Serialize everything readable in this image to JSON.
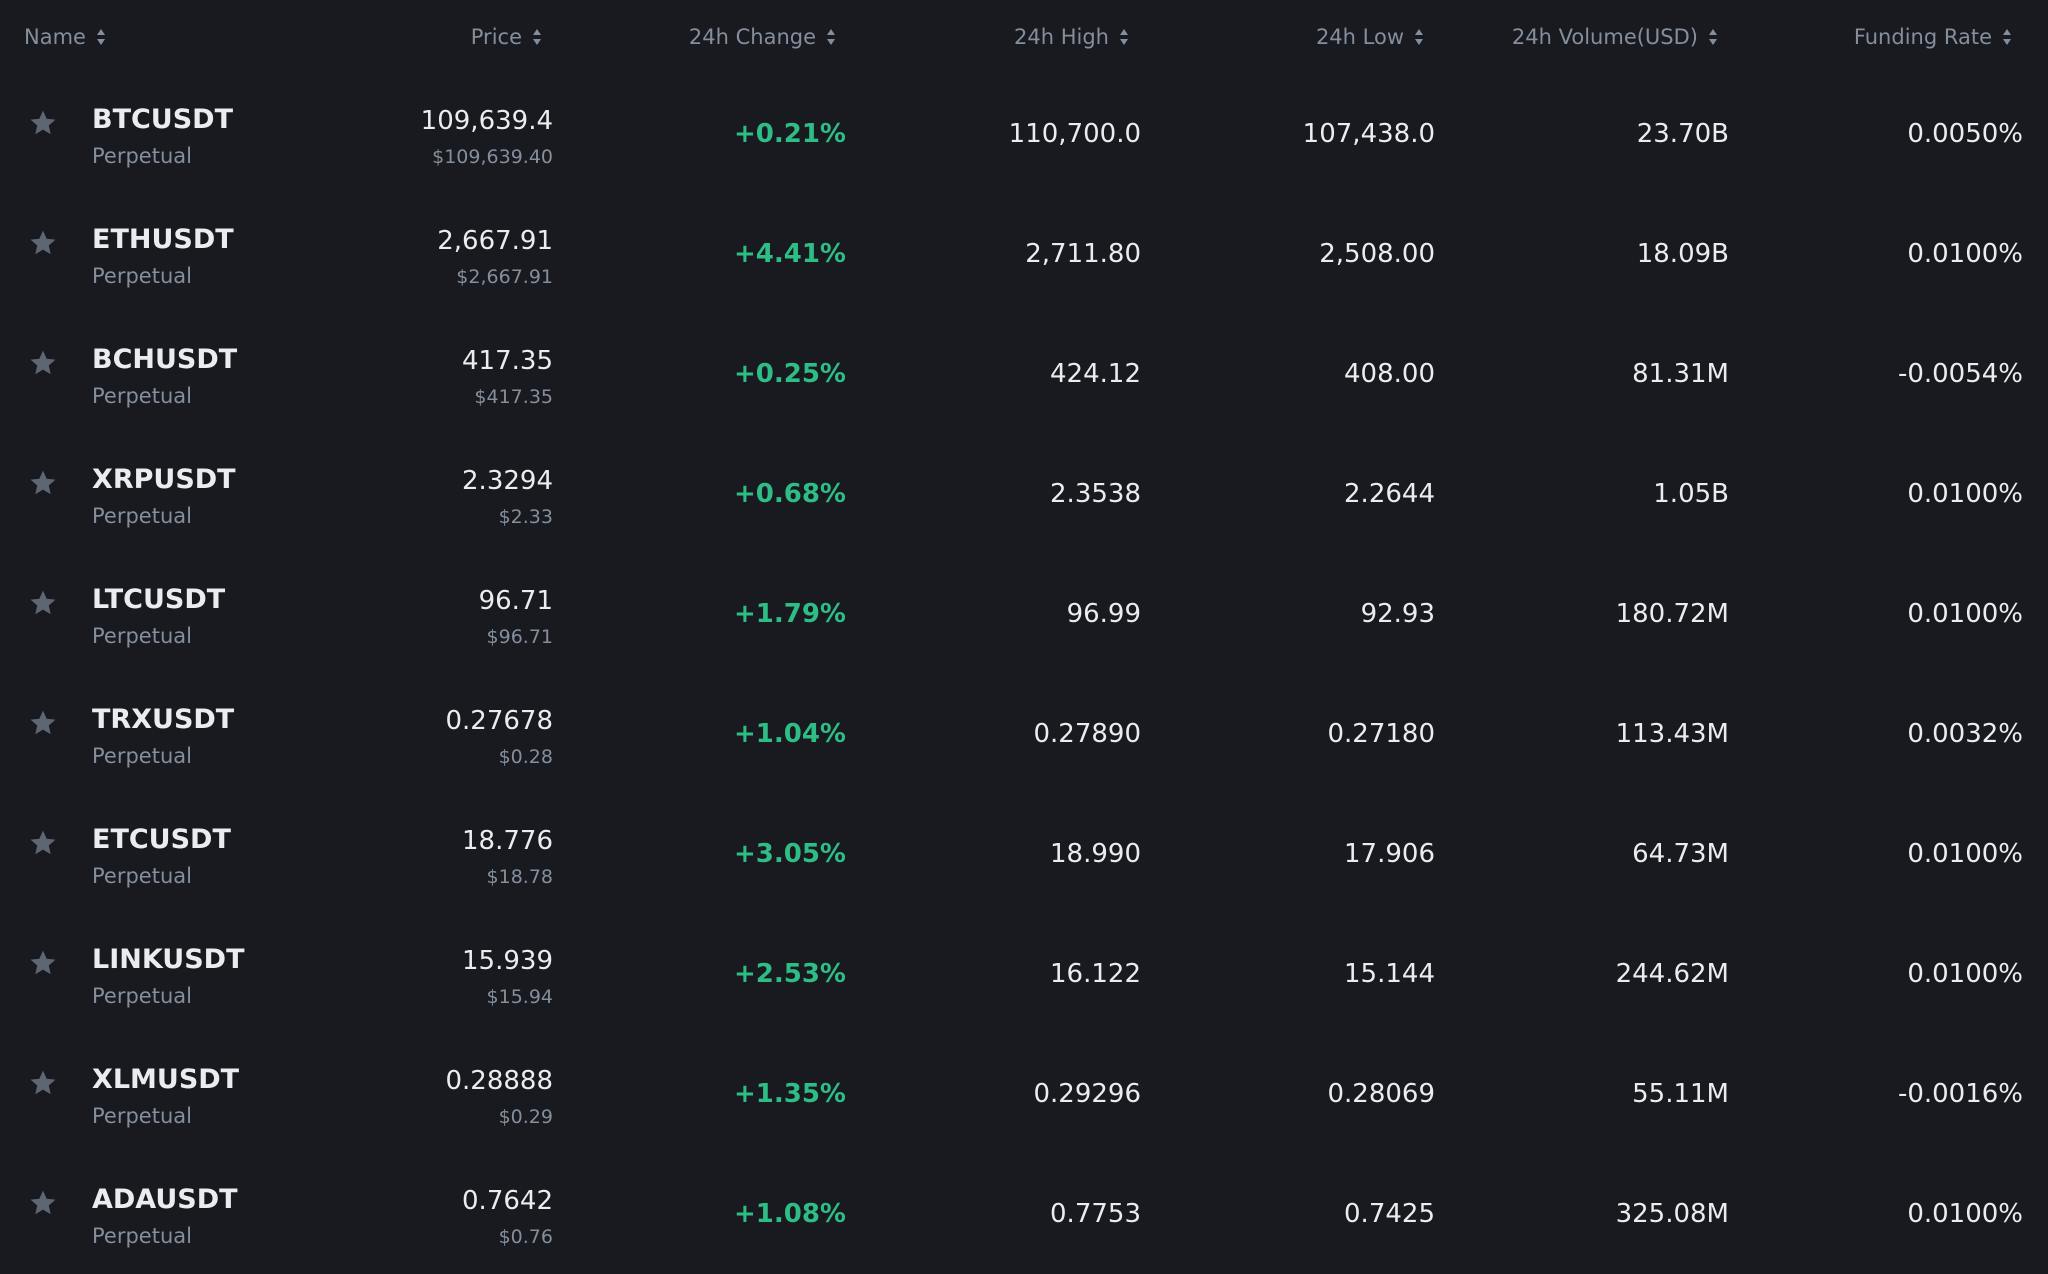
{
  "colors": {
    "background": "#181a20",
    "text_primary": "#eaecef",
    "text_secondary": "#848e9c",
    "positive": "#2ebd85",
    "star": "#5e6673"
  },
  "header": {
    "name": "Name",
    "price": "Price",
    "change": "24h Change",
    "high": "24h High",
    "low": "24h Low",
    "volume": "24h Volume(USD)",
    "funding": "Funding Rate",
    "sort_icon": "sort-updown-icon"
  },
  "rows": [
    {
      "symbol": "BTCUSDT",
      "type": "Perpetual",
      "price": "109,639.4",
      "price_usd": "$109,639.40",
      "change": "+0.21%",
      "high": "110,700.0",
      "low": "107,438.0",
      "volume": "23.70B",
      "funding": "0.0050%",
      "favorite_icon": "star-icon"
    },
    {
      "symbol": "ETHUSDT",
      "type": "Perpetual",
      "price": "2,667.91",
      "price_usd": "$2,667.91",
      "change": "+4.41%",
      "high": "2,711.80",
      "low": "2,508.00",
      "volume": "18.09B",
      "funding": "0.0100%",
      "favorite_icon": "star-icon"
    },
    {
      "symbol": "BCHUSDT",
      "type": "Perpetual",
      "price": "417.35",
      "price_usd": "$417.35",
      "change": "+0.25%",
      "high": "424.12",
      "low": "408.00",
      "volume": "81.31M",
      "funding": "-0.0054%",
      "favorite_icon": "star-icon"
    },
    {
      "symbol": "XRPUSDT",
      "type": "Perpetual",
      "price": "2.3294",
      "price_usd": "$2.33",
      "change": "+0.68%",
      "high": "2.3538",
      "low": "2.2644",
      "volume": "1.05B",
      "funding": "0.0100%",
      "favorite_icon": "star-icon"
    },
    {
      "symbol": "LTCUSDT",
      "type": "Perpetual",
      "price": "96.71",
      "price_usd": "$96.71",
      "change": "+1.79%",
      "high": "96.99",
      "low": "92.93",
      "volume": "180.72M",
      "funding": "0.0100%",
      "favorite_icon": "star-icon"
    },
    {
      "symbol": "TRXUSDT",
      "type": "Perpetual",
      "price": "0.27678",
      "price_usd": "$0.28",
      "change": "+1.04%",
      "high": "0.27890",
      "low": "0.27180",
      "volume": "113.43M",
      "funding": "0.0032%",
      "favorite_icon": "star-icon"
    },
    {
      "symbol": "ETCUSDT",
      "type": "Perpetual",
      "price": "18.776",
      "price_usd": "$18.78",
      "change": "+3.05%",
      "high": "18.990",
      "low": "17.906",
      "volume": "64.73M",
      "funding": "0.0100%",
      "favorite_icon": "star-icon"
    },
    {
      "symbol": "LINKUSDT",
      "type": "Perpetual",
      "price": "15.939",
      "price_usd": "$15.94",
      "change": "+2.53%",
      "high": "16.122",
      "low": "15.144",
      "volume": "244.62M",
      "funding": "0.0100%",
      "favorite_icon": "star-icon"
    },
    {
      "symbol": "XLMUSDT",
      "type": "Perpetual",
      "price": "0.28888",
      "price_usd": "$0.29",
      "change": "+1.35%",
      "high": "0.29296",
      "low": "0.28069",
      "volume": "55.11M",
      "funding": "-0.0016%",
      "favorite_icon": "star-icon"
    },
    {
      "symbol": "ADAUSDT",
      "type": "Perpetual",
      "price": "0.7642",
      "price_usd": "$0.76",
      "change": "+1.08%",
      "high": "0.7753",
      "low": "0.7425",
      "volume": "325.08M",
      "funding": "0.0100%",
      "favorite_icon": "star-icon"
    }
  ]
}
